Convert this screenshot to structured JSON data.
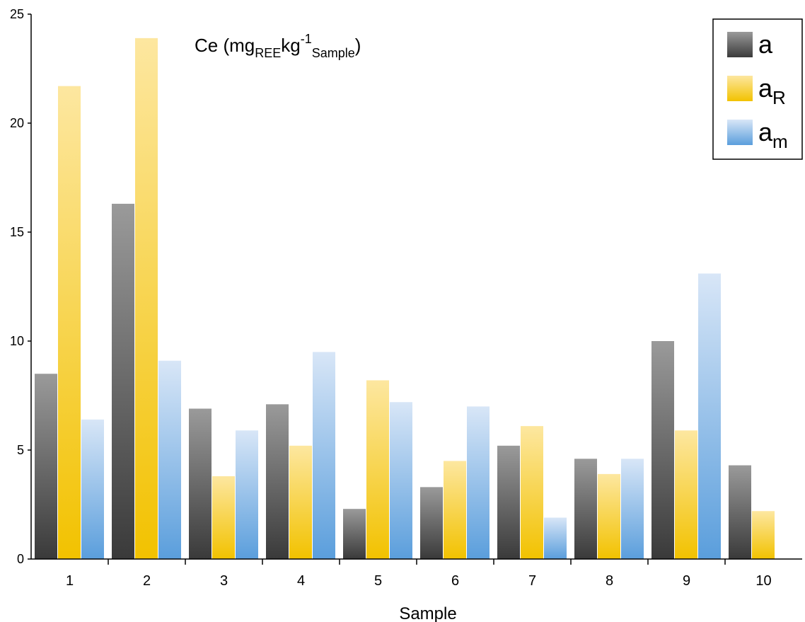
{
  "chart_data": {
    "type": "bar",
    "title": {
      "base": "Ce (mg",
      "sub1": "REE",
      "mid": "kg",
      "sup": "-1",
      "sub2": "Sample",
      "end": ")"
    },
    "xlabel": "Sample",
    "ylabel": "",
    "ylim": [
      0,
      25
    ],
    "yticks": [
      0,
      5,
      10,
      15,
      20,
      25
    ],
    "grid": false,
    "legend_position": "top-right",
    "categories": [
      "1",
      "2",
      "3",
      "4",
      "5",
      "6",
      "7",
      "8",
      "9",
      "10"
    ],
    "series": [
      {
        "name": "a",
        "legend_main": "a",
        "legend_sub": "",
        "colors": {
          "top": "#9a9a9a",
          "bottom": "#3a3a3a"
        },
        "values": [
          8.5,
          16.3,
          6.9,
          7.1,
          2.3,
          3.3,
          5.2,
          4.6,
          10.0,
          4.3
        ]
      },
      {
        "name": "aR",
        "legend_main": "a",
        "legend_sub": "R",
        "colors": {
          "top": "#fde7a0",
          "bottom": "#f2c200"
        },
        "values": [
          21.7,
          23.9,
          3.8,
          5.2,
          8.2,
          4.5,
          6.1,
          3.9,
          5.9,
          2.2
        ]
      },
      {
        "name": "am",
        "legend_main": "a",
        "legend_sub": "m",
        "colors": {
          "top": "#d8e6f7",
          "bottom": "#5a9edc"
        },
        "values": [
          6.4,
          9.1,
          5.9,
          9.5,
          7.2,
          7.0,
          1.9,
          4.6,
          13.1,
          null
        ]
      }
    ]
  }
}
